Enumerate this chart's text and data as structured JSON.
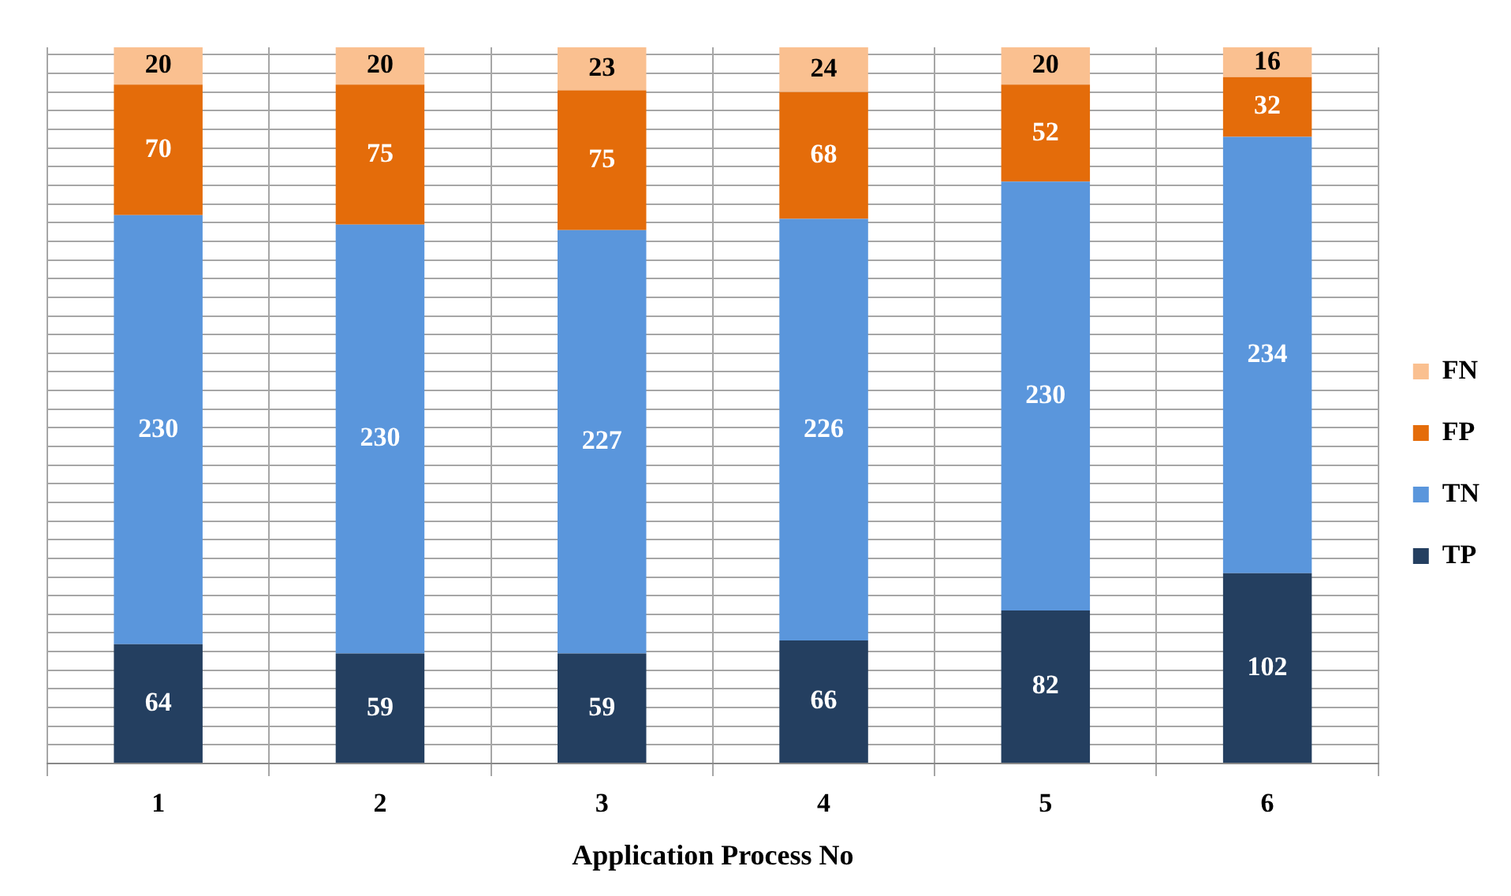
{
  "chart_data": {
    "type": "bar",
    "stacked": true,
    "xlabel": "Application Process No",
    "categories": [
      "1",
      "2",
      "3",
      "4",
      "5",
      "6"
    ],
    "series": [
      {
        "name": "TP",
        "color": "#243f60",
        "values": [
          64,
          59,
          59,
          66,
          82,
          102
        ]
      },
      {
        "name": "TN",
        "color": "#5a96dc",
        "values": [
          230,
          230,
          227,
          226,
          230,
          234
        ]
      },
      {
        "name": "FP",
        "color": "#e46c0a",
        "values": [
          70,
          75,
          75,
          68,
          52,
          32
        ]
      },
      {
        "name": "FN",
        "color": "#fac090",
        "values": [
          20,
          20,
          23,
          24,
          20,
          16
        ]
      }
    ],
    "ylim": [
      0,
      384
    ],
    "yticks": [
      {
        "value": 0,
        "label": null
      },
      {
        "value": 10,
        "label": null
      },
      {
        "value": 20,
        "label": null
      },
      {
        "value": 30,
        "label": null
      },
      {
        "value": 40,
        "label": null
      },
      {
        "value": 50,
        "label": null
      },
      {
        "value": 60,
        "label": null
      },
      {
        "value": 70,
        "label": null
      },
      {
        "value": 80,
        "label": null
      },
      {
        "value": 90,
        "label": null
      },
      {
        "value": 100,
        "label": null
      },
      {
        "value": 110,
        "label": null
      },
      {
        "value": 120,
        "label": null
      },
      {
        "value": 130,
        "label": null
      },
      {
        "value": 140,
        "label": null
      },
      {
        "value": 150,
        "label": null
      },
      {
        "value": 160,
        "label": null
      },
      {
        "value": 170,
        "label": null
      },
      {
        "value": 180,
        "label": null
      },
      {
        "value": 190,
        "label": null
      },
      {
        "value": 200,
        "label": null
      },
      {
        "value": 210,
        "label": null
      },
      {
        "value": 220,
        "label": null
      },
      {
        "value": 230,
        "label": null
      },
      {
        "value": 240,
        "label": null
      },
      {
        "value": 250,
        "label": null
      },
      {
        "value": 260,
        "label": null
      },
      {
        "value": 270,
        "label": null
      },
      {
        "value": 280,
        "label": null
      },
      {
        "value": 290,
        "label": null
      },
      {
        "value": 300,
        "label": null
      },
      {
        "value": 310,
        "label": null
      },
      {
        "value": 320,
        "label": null
      },
      {
        "value": 330,
        "label": null
      },
      {
        "value": 340,
        "label": null
      },
      {
        "value": 350,
        "label": null
      },
      {
        "value": 360,
        "label": null
      },
      {
        "value": 370,
        "label": null
      },
      {
        "value": 380,
        "label": null
      }
    ],
    "tick_labels": "x",
    "grid": true,
    "legend": "right",
    "data_labels": true
  }
}
